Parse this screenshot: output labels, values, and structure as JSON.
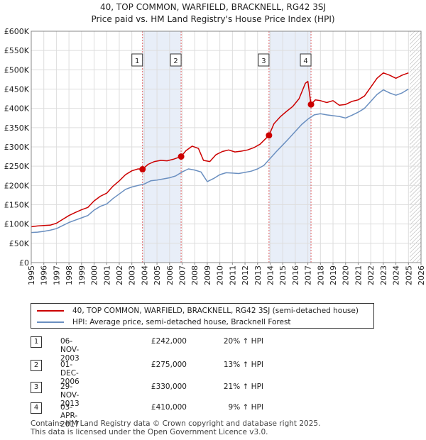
{
  "title_line1": "40, TOP COMMON, WARFIELD, BRACKNELL, RG42 3SJ",
  "title_line2": "Price paid vs. HM Land Registry's House Price Index (HPI)",
  "colors": {
    "property": "#cc0000",
    "hpi": "#6a8fc0",
    "shade": "#e8eef8",
    "marker_line": "#e06060",
    "future_hatch": "#aaaaaa"
  },
  "chart_data": {
    "type": "line",
    "title": "40, TOP COMMON, WARFIELD, BRACKNELL, RG42 3SJ - Price paid vs. HM Land Registry's House Price Index (HPI)",
    "xlim": [
      1995,
      2026
    ],
    "ylim": [
      0,
      600000
    ],
    "y_ticks": [
      0,
      50000,
      100000,
      150000,
      200000,
      250000,
      300000,
      350000,
      400000,
      450000,
      500000,
      550000,
      600000
    ],
    "y_tick_labels": [
      "£0",
      "£50K",
      "£100K",
      "£150K",
      "£200K",
      "£250K",
      "£300K",
      "£350K",
      "£400K",
      "£450K",
      "£500K",
      "£550K",
      "£600K"
    ],
    "x_ticks": [
      1995,
      1996,
      1997,
      1998,
      1999,
      2000,
      2001,
      2002,
      2003,
      2004,
      2005,
      2006,
      2007,
      2008,
      2009,
      2010,
      2011,
      2012,
      2013,
      2014,
      2015,
      2016,
      2017,
      2018,
      2019,
      2020,
      2021,
      2022,
      2023,
      2024,
      2025,
      2026
    ],
    "x_tick_labels": [
      "1995",
      "1996",
      "1997",
      "1998",
      "1999",
      "2000",
      "2001",
      "2002",
      "2003",
      "2004",
      "2005",
      "2006",
      "2007",
      "2008",
      "2009",
      "2010",
      "2011",
      "2012",
      "2013",
      "2014",
      "2015",
      "2016",
      "2017",
      "2018",
      "2019",
      "2020",
      "2021",
      "2022",
      "2023",
      "2024",
      "2025",
      "2026"
    ],
    "future_from": 2025.1,
    "shaded_spans": [
      [
        2003.85,
        2006.92
      ],
      [
        2013.91,
        2017.25
      ]
    ],
    "series": [
      {
        "name": "40, TOP COMMON, WARFIELD, BRACKNELL, RG42 3SJ (semi-detached house)",
        "x": [
          1995.0,
          1995.5,
          1996.0,
          1996.5,
          1997.0,
          1997.5,
          1998.0,
          1998.5,
          1999.0,
          1999.5,
          2000.0,
          2000.5,
          2001.0,
          2001.5,
          2002.0,
          2002.5,
          2003.0,
          2003.5,
          2003.85,
          2004.3,
          2004.8,
          2005.3,
          2005.8,
          2006.3,
          2006.92,
          2007.3,
          2007.8,
          2008.3,
          2008.7,
          2009.2,
          2009.7,
          2010.2,
          2010.7,
          2011.2,
          2011.7,
          2012.2,
          2012.7,
          2013.2,
          2013.91,
          2014.3,
          2014.8,
          2015.3,
          2015.8,
          2016.3,
          2016.8,
          2017.0,
          2017.25,
          2017.6,
          2018.0,
          2018.5,
          2019.0,
          2019.5,
          2020.0,
          2020.5,
          2021.0,
          2021.5,
          2022.0,
          2022.5,
          2023.0,
          2023.5,
          2024.0,
          2024.5,
          2025.0
        ],
        "y": [
          93000,
          95000,
          96000,
          97000,
          102000,
          112000,
          122000,
          130000,
          137000,
          143000,
          160000,
          172000,
          180000,
          198000,
          212000,
          228000,
          238000,
          243000,
          242000,
          255000,
          262000,
          265000,
          264000,
          268000,
          275000,
          290000,
          302000,
          296000,
          265000,
          262000,
          280000,
          288000,
          292000,
          287000,
          289000,
          292000,
          298000,
          307000,
          330000,
          360000,
          378000,
          392000,
          405000,
          425000,
          465000,
          470000,
          410000,
          422000,
          420000,
          415000,
          420000,
          408000,
          410000,
          418000,
          422000,
          432000,
          455000,
          478000,
          492000,
          486000,
          478000,
          486000,
          492000
        ]
      },
      {
        "name": "HPI: Average price, semi-detached house, Bracknell Forest",
        "x": [
          1995.0,
          1995.5,
          1996.0,
          1996.5,
          1997.0,
          1997.5,
          1998.0,
          1998.5,
          1999.0,
          1999.5,
          2000.0,
          2000.5,
          2001.0,
          2001.5,
          2002.0,
          2002.5,
          2003.0,
          2003.5,
          2004.0,
          2004.5,
          2005.0,
          2005.5,
          2006.0,
          2006.5,
          2007.0,
          2007.5,
          2008.0,
          2008.5,
          2009.0,
          2009.5,
          2010.0,
          2010.5,
          2011.0,
          2011.5,
          2012.0,
          2012.5,
          2013.0,
          2013.5,
          2014.0,
          2014.5,
          2015.0,
          2015.5,
          2016.0,
          2016.5,
          2017.0,
          2017.5,
          2018.0,
          2018.5,
          2019.0,
          2019.5,
          2020.0,
          2020.5,
          2021.0,
          2021.5,
          2022.0,
          2022.5,
          2023.0,
          2023.5,
          2024.0,
          2024.5,
          2025.0
        ],
        "y": [
          78000,
          79000,
          81000,
          84000,
          88000,
          96000,
          104000,
          110000,
          116000,
          122000,
          136000,
          146000,
          152000,
          166000,
          178000,
          190000,
          196000,
          200000,
          204000,
          212000,
          214000,
          217000,
          220000,
          225000,
          235000,
          243000,
          240000,
          235000,
          210000,
          218000,
          228000,
          233000,
          232000,
          231000,
          234000,
          237000,
          243000,
          252000,
          270000,
          288000,
          305000,
          322000,
          340000,
          358000,
          372000,
          383000,
          386000,
          383000,
          381000,
          379000,
          375000,
          382000,
          390000,
          400000,
          418000,
          436000,
          448000,
          440000,
          434000,
          440000,
          450000
        ]
      }
    ],
    "transactions": [
      {
        "label": "1",
        "x": 2003.85,
        "y": 242000
      },
      {
        "label": "2",
        "x": 2006.92,
        "y": 275000
      },
      {
        "label": "3",
        "x": 2013.91,
        "y": 330000
      },
      {
        "label": "4",
        "x": 2017.25,
        "y": 410000
      }
    ]
  },
  "legend": {
    "property_label": "40, TOP COMMON, WARFIELD, BRACKNELL, RG42 3SJ (semi-detached house)",
    "hpi_label": "HPI: Average price, semi-detached house, Bracknell Forest"
  },
  "sales": [
    {
      "num": "1",
      "date": "06-NOV-2003",
      "price": "£242,000",
      "hpi": "20% ↑ HPI"
    },
    {
      "num": "2",
      "date": "01-DEC-2006",
      "price": "£275,000",
      "hpi": "13% ↑ HPI"
    },
    {
      "num": "3",
      "date": "29-NOV-2013",
      "price": "£330,000",
      "hpi": "21% ↑ HPI"
    },
    {
      "num": "4",
      "date": "03-APR-2017",
      "price": "£410,000",
      "hpi": "9% ↑ HPI"
    }
  ],
  "footer": {
    "line1": "Contains HM Land Registry data © Crown copyright and database right 2025.",
    "line2": "This data is licensed under the Open Government Licence v3.0."
  }
}
